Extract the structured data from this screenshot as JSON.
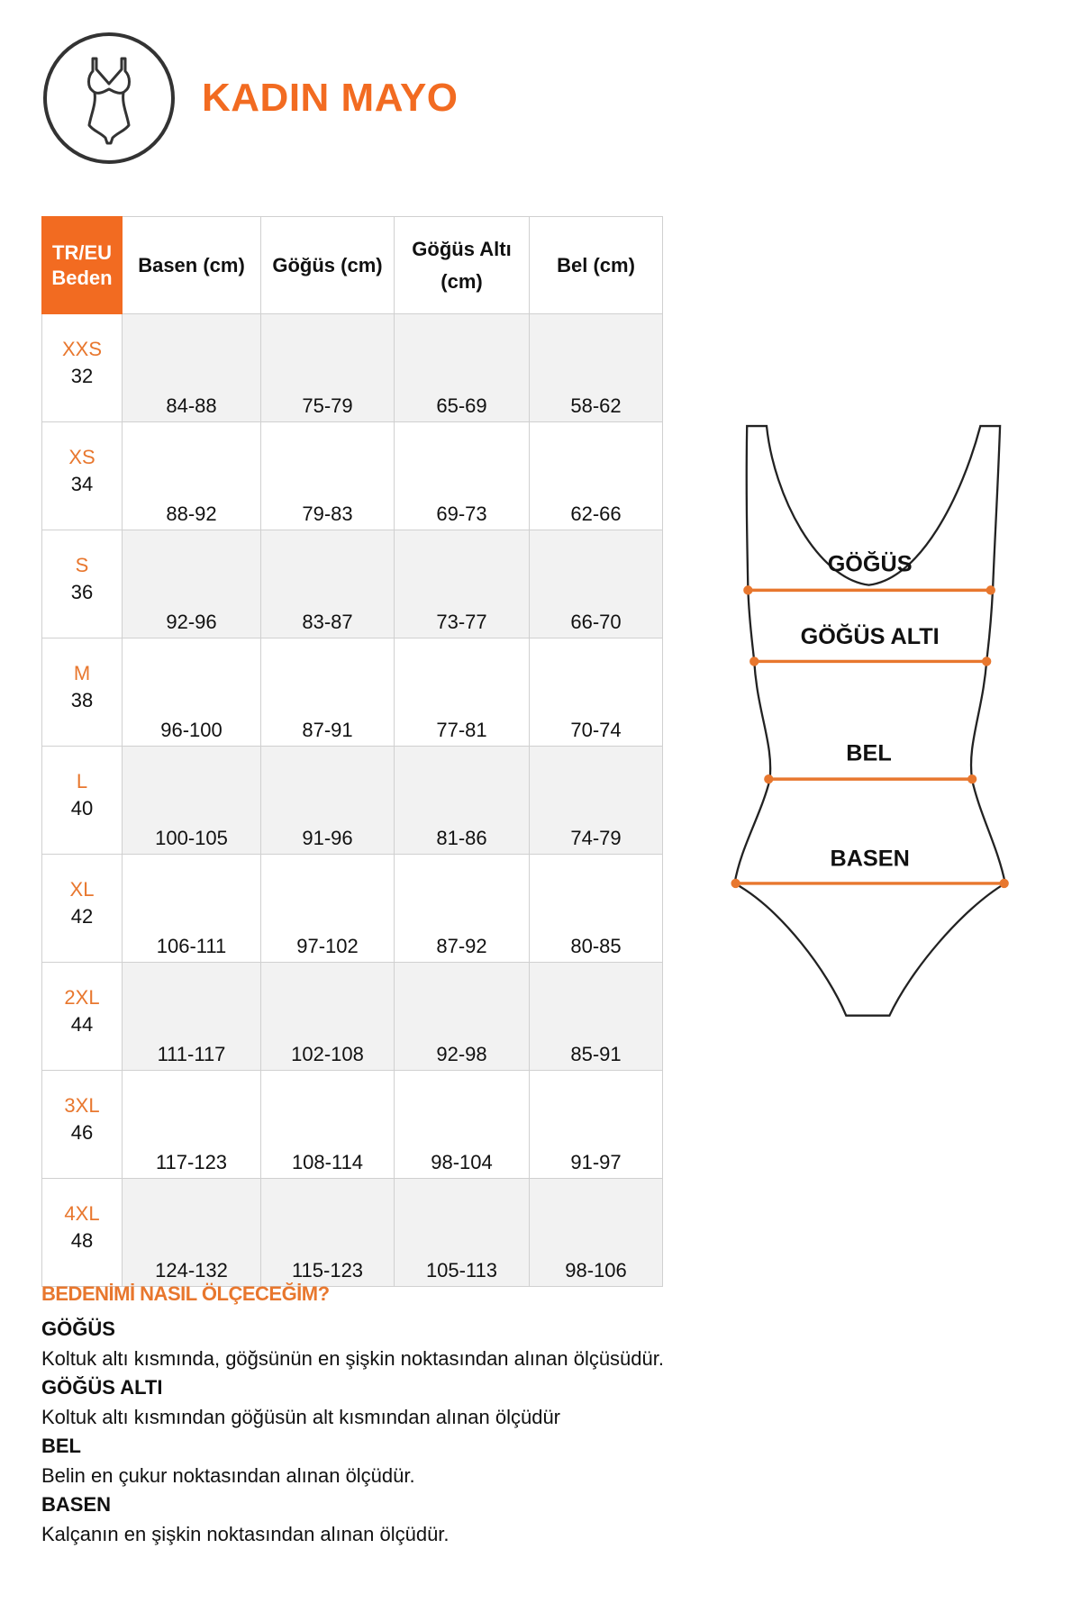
{
  "header": {
    "title": "KADIN MAYO",
    "icon": "swimsuit-icon"
  },
  "colors": {
    "accent": "#f26b21",
    "size_label": "#e8772e",
    "alt_row": "#f2f2f2"
  },
  "table": {
    "headers": {
      "size": [
        "TR/EU",
        "Beden"
      ],
      "basen": "Basen (cm)",
      "gogus": "Göğüs (cm)",
      "gogus_alti": [
        "Göğüs Altı",
        "(cm)"
      ],
      "bel": "Bel (cm)"
    },
    "rows": [
      {
        "size": "XXS",
        "tr": "32",
        "basen": "84-88",
        "gogus": "75-79",
        "gogus_alti": "65-69",
        "bel": "58-62"
      },
      {
        "size": "XS",
        "tr": "34",
        "basen": "88-92",
        "gogus": "79-83",
        "gogus_alti": "69-73",
        "bel": "62-66"
      },
      {
        "size": "S",
        "tr": "36",
        "basen": "92-96",
        "gogus": "83-87",
        "gogus_alti": "73-77",
        "bel": "66-70"
      },
      {
        "size": "M",
        "tr": "38",
        "basen": "96-100",
        "gogus": "87-91",
        "gogus_alti": "77-81",
        "bel": "70-74"
      },
      {
        "size": "L",
        "tr": "40",
        "basen": "100-105",
        "gogus": "91-96",
        "gogus_alti": "81-86",
        "bel": "74-79"
      },
      {
        "size": "XL",
        "tr": "42",
        "basen": "106-111",
        "gogus": "97-102",
        "gogus_alti": "87-92",
        "bel": "80-85"
      },
      {
        "size": "2XL",
        "tr": "44",
        "basen": "111-117",
        "gogus": "102-108",
        "gogus_alti": "92-98",
        "bel": "85-91"
      },
      {
        "size": "3XL",
        "tr": "46",
        "basen": "117-123",
        "gogus": "108-114",
        "gogus_alti": "98-104",
        "bel": "91-97"
      },
      {
        "size": "4XL",
        "tr": "48",
        "basen": "124-132",
        "gogus": "115-123",
        "gogus_alti": "105-113",
        "bel": "98-106"
      }
    ]
  },
  "diagram": {
    "labels": [
      "GÖĞÜS",
      "GÖĞÜS ALTI",
      "BEL",
      "BASEN"
    ]
  },
  "howto": {
    "heading": "BEDENİMİ NASIL ÖLÇECEĞİM?",
    "items": [
      {
        "title": "GÖĞÜS",
        "text": "Koltuk altı kısmında, göğsünün en şişkin noktasından alınan ölçüsüdür."
      },
      {
        "title": "GÖĞÜS ALTI",
        "text": "Koltuk altı kısmından göğüsün alt kısmından alınan ölçüdür"
      },
      {
        "title": "BEL",
        "text": "Belin en çukur noktasından alınan ölçüdür."
      },
      {
        "title": "BASEN",
        "text": "Kalçanın en şişkin noktasından alınan ölçüdür."
      }
    ]
  }
}
